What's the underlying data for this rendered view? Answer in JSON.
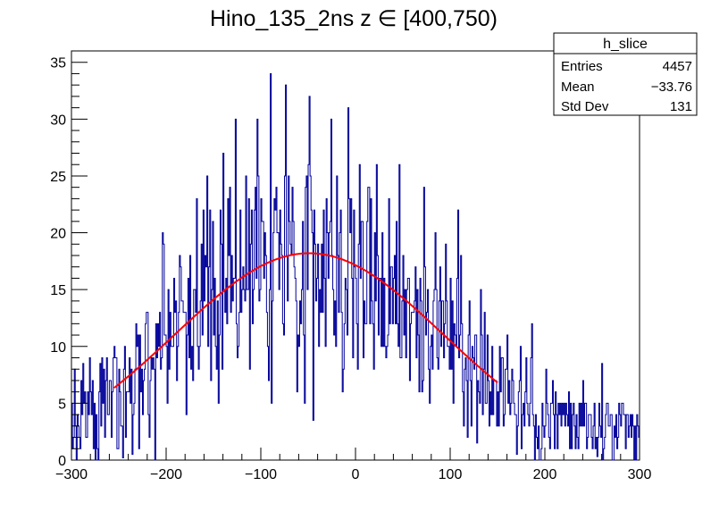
{
  "chart_data": {
    "type": "histogram",
    "title": "Hino_135_2ns z  ∈ [400,750)",
    "xlabel": "",
    "ylabel": "",
    "xlim": [
      -300,
      300
    ],
    "ylim": [
      0,
      36
    ],
    "x_ticks": [
      "−300",
      "−200",
      "−100",
      "0",
      "100",
      "200",
      "300"
    ],
    "x_tick_values": [
      -300,
      -200,
      -100,
      0,
      100,
      200,
      300
    ],
    "y_ticks": [
      "0",
      "5",
      "10",
      "15",
      "20",
      "25",
      "30",
      "35"
    ],
    "y_tick_values": [
      0,
      5,
      10,
      15,
      20,
      25,
      30,
      35
    ],
    "grid": false,
    "legend_position": "top-right",
    "histogram": {
      "name": "h_slice",
      "color": "#000099",
      "bins": 600,
      "bin_range": [
        -300,
        300
      ],
      "profile": {
        "x": [
          -300,
          -280,
          -260,
          -240,
          -220,
          -200,
          -180,
          -160,
          -140,
          -120,
          -100,
          -80,
          -60,
          -40,
          -20,
          0,
          20,
          40,
          60,
          80,
          100,
          120,
          140,
          160,
          180,
          200,
          220,
          240,
          260,
          280,
          300
        ],
        "y": [
          3,
          4,
          5,
          6,
          8,
          11,
          13,
          15,
          16,
          17,
          18,
          18,
          18.5,
          18.5,
          18,
          16.5,
          16,
          15,
          13,
          12,
          11,
          9,
          7,
          6,
          4.5,
          4,
          3.5,
          3,
          2.5,
          2,
          2
        ]
      },
      "spikes": [
        {
          "x": -288,
          "y": 8.5
        },
        {
          "x": -270,
          "y": 8.5
        },
        {
          "x": -244,
          "y": 10
        },
        {
          "x": -236,
          "y": 11
        },
        {
          "x": -222,
          "y": 12
        },
        {
          "x": -204,
          "y": 20
        },
        {
          "x": -168,
          "y": 23
        },
        {
          "x": -140,
          "y": 27
        },
        {
          "x": -127,
          "y": 30
        },
        {
          "x": -104,
          "y": 30
        },
        {
          "x": -90,
          "y": 34
        },
        {
          "x": -74,
          "y": 33
        },
        {
          "x": -49,
          "y": 32
        },
        {
          "x": -26,
          "y": 30
        },
        {
          "x": -8,
          "y": 31
        },
        {
          "x": 22,
          "y": 26
        },
        {
          "x": 46,
          "y": 26
        },
        {
          "x": 72,
          "y": 24
        },
        {
          "x": 108,
          "y": 22
        },
        {
          "x": 132,
          "y": 15
        },
        {
          "x": 160,
          "y": 11
        },
        {
          "x": 186,
          "y": 12
        },
        {
          "x": 260,
          "y": 8.5
        }
      ],
      "dips": [
        {
          "x": -246,
          "y": 0.2
        },
        {
          "x": -236,
          "y": 0.5
        },
        {
          "x": -89,
          "y": 5
        },
        {
          "x": -54,
          "y": 5
        },
        {
          "x": -45,
          "y": 3.5
        },
        {
          "x": 128,
          "y": 1.5
        },
        {
          "x": 170,
          "y": 0.5
        },
        {
          "x": 255,
          "y": 0.3
        }
      ]
    },
    "fit": {
      "type": "gaus",
      "color": "#ff0000",
      "range": [
        -255,
        150
      ],
      "constant": 18.2,
      "mean": -49,
      "sigma": 142
    }
  },
  "stats_box": {
    "title": "h_slice",
    "rows": [
      {
        "label": "Entries",
        "value": "4457"
      },
      {
        "label": "Mean",
        "value": "−33.76"
      },
      {
        "label": "Std Dev",
        "value": "131"
      }
    ]
  }
}
